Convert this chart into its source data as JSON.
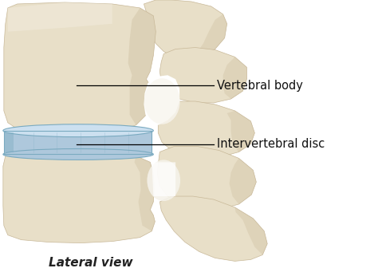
{
  "background_color": "#ffffff",
  "caption": "Lateral view",
  "caption_fontsize": 11,
  "caption_fontstyle": "italic",
  "caption_fontweight": "bold",
  "label1": "Vertebral body",
  "label2": "Intervertebral disc",
  "label_fontsize": 10.5,
  "bone_color": "#e8dfc8",
  "bone_shadow": "#c8b898",
  "bone_light": "#f5f0e5",
  "disc_fill": "#aec8dc",
  "disc_light": "#cce0f0",
  "disc_dark": "#7aaac0",
  "line_color": "#000000",
  "fig_width": 4.74,
  "fig_height": 3.41,
  "dpi": 100
}
